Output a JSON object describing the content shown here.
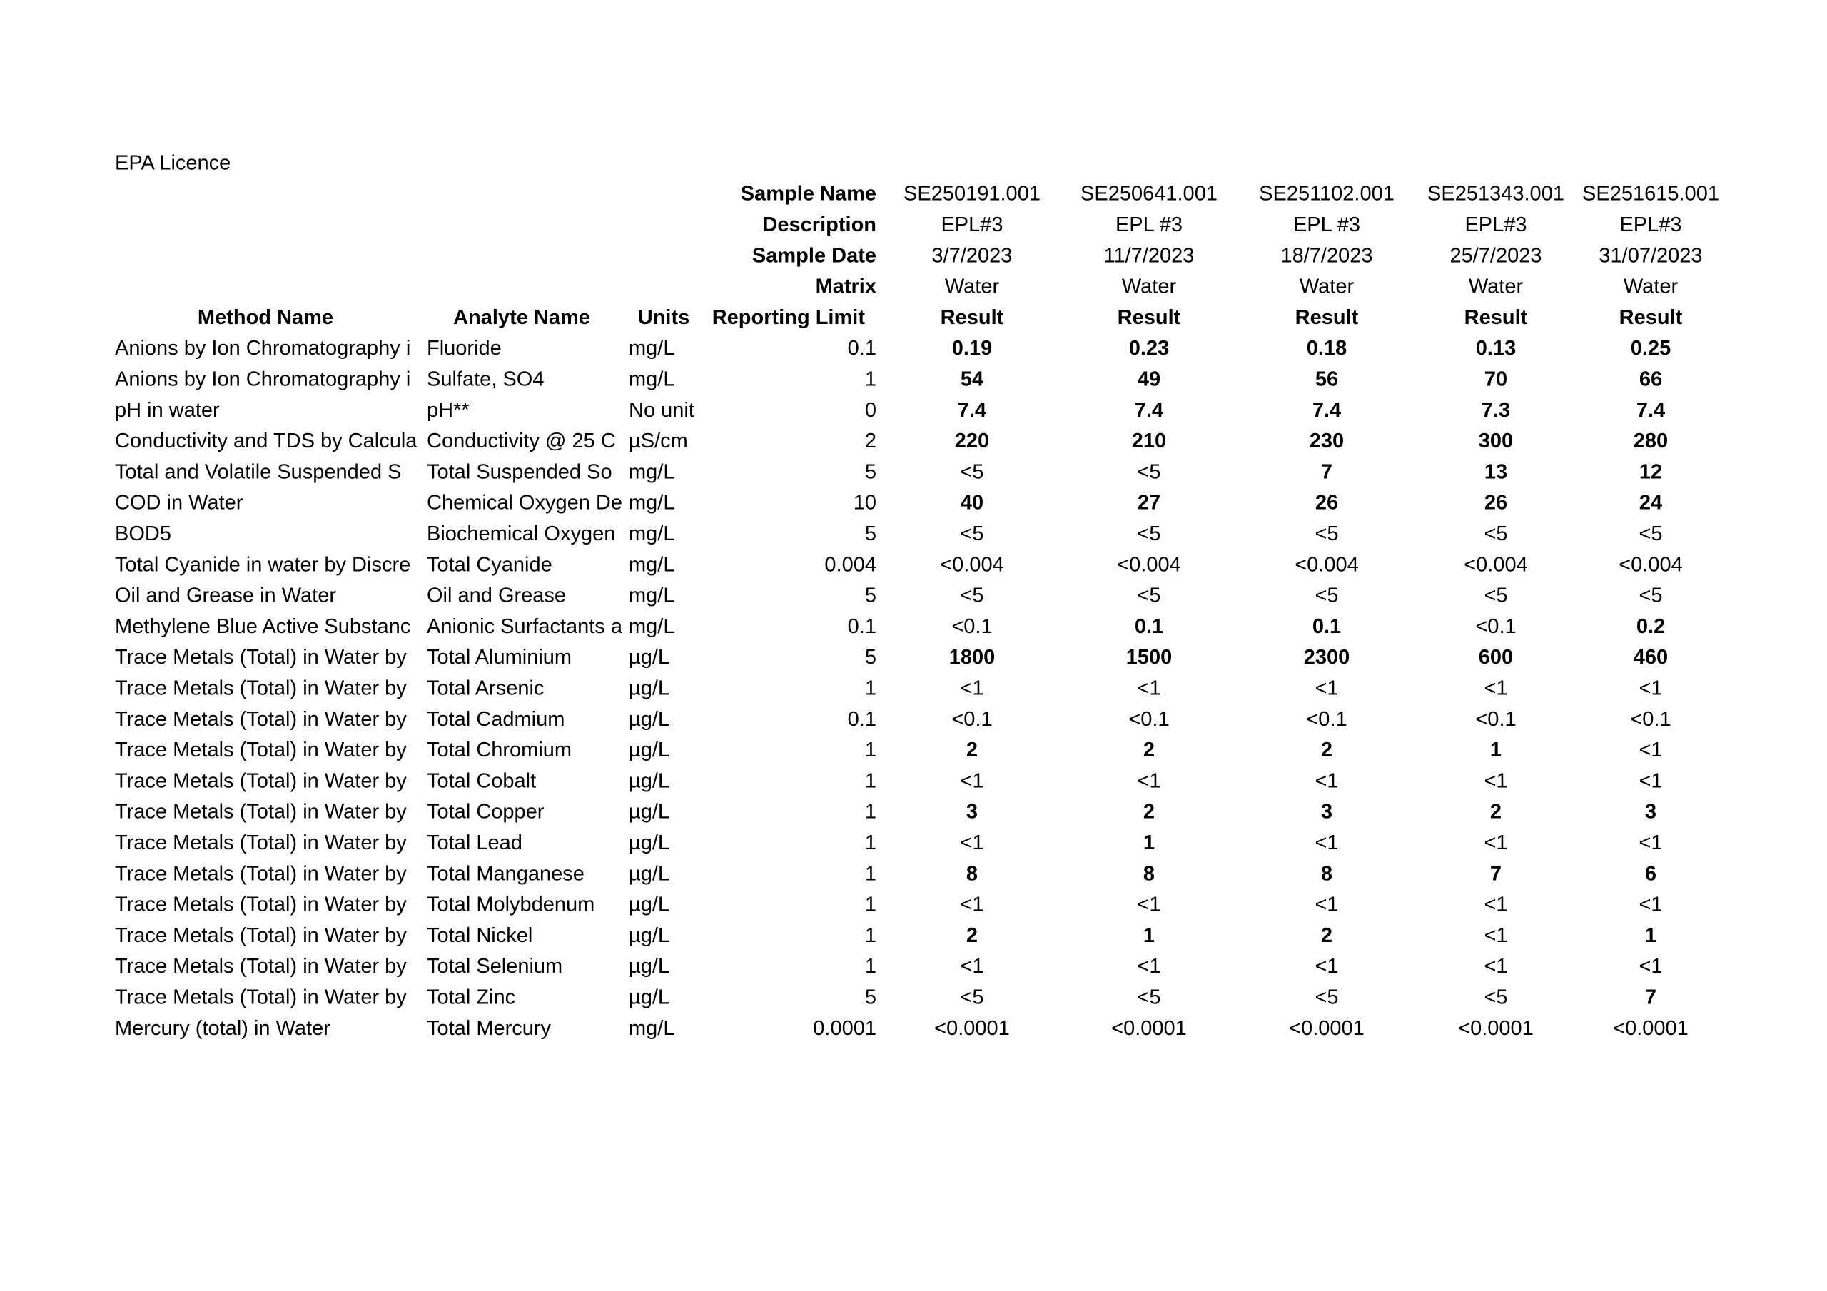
{
  "title": "EPA Licence",
  "sample_header": {
    "labels": [
      "Sample Name",
      "Description",
      "Sample Date",
      "Matrix"
    ],
    "rows": [
      [
        "SE250191.001",
        "SE250641.001",
        "SE251102.001",
        "SE251343.001",
        "SE251615.001"
      ],
      [
        "EPL#3",
        "EPL #3",
        "EPL #3",
        "EPL#3",
        "EPL#3"
      ],
      [
        "3/7/2023",
        "11/7/2023",
        "18/7/2023",
        "25/7/2023",
        "31/07/2023"
      ],
      [
        "Water",
        "Water",
        "Water",
        "Water",
        "Water"
      ]
    ]
  },
  "table": {
    "columns": [
      "Method Name",
      "Analyte Name",
      "Units",
      "Reporting Limit",
      "Result",
      "Result",
      "Result",
      "Result",
      "Result"
    ],
    "rows": [
      [
        "Anions by Ion Chromatography i",
        "Fluoride",
        "mg/L",
        "0.1",
        "0.19",
        "0.23",
        "0.18",
        "0.13",
        "0.25"
      ],
      [
        "Anions by Ion Chromatography i",
        "Sulfate, SO4",
        "mg/L",
        "1",
        "54",
        "49",
        "56",
        "70",
        "66"
      ],
      [
        "pH in water",
        "pH**",
        "No unit",
        "0",
        "7.4",
        "7.4",
        "7.4",
        "7.3",
        "7.4"
      ],
      [
        "Conductivity and TDS by Calcula",
        "Conductivity @ 25 C",
        "µS/cm",
        "2",
        "220",
        "210",
        "230",
        "300",
        "280"
      ],
      [
        "Total and Volatile Suspended S",
        "Total Suspended So",
        "mg/L",
        "5",
        "<5",
        "<5",
        "7",
        "13",
        "12"
      ],
      [
        "COD in Water",
        "Chemical Oxygen De",
        "mg/L",
        "10",
        "40",
        "27",
        "26",
        "26",
        "24"
      ],
      [
        "BOD5",
        "Biochemical Oxygen",
        "mg/L",
        "5",
        "<5",
        "<5",
        "<5",
        "<5",
        "<5"
      ],
      [
        "Total Cyanide in water by Discre",
        "Total Cyanide",
        "mg/L",
        "0.004",
        "<0.004",
        "<0.004",
        "<0.004",
        "<0.004",
        "<0.004"
      ],
      [
        "Oil and Grease in Water",
        "Oil and Grease",
        "mg/L",
        "5",
        "<5",
        "<5",
        "<5",
        "<5",
        "<5"
      ],
      [
        "Methylene Blue Active Substanc",
        "Anionic Surfactants a",
        "mg/L",
        "0.1",
        "<0.1",
        "0.1",
        "0.1",
        "<0.1",
        "0.2"
      ],
      [
        "Trace Metals (Total) in Water by",
        "Total Aluminium",
        "µg/L",
        "5",
        "1800",
        "1500",
        "2300",
        "600",
        "460"
      ],
      [
        "Trace Metals (Total) in Water by",
        "Total Arsenic",
        "µg/L",
        "1",
        "<1",
        "<1",
        "<1",
        "<1",
        "<1"
      ],
      [
        "Trace Metals (Total) in Water by",
        "Total Cadmium",
        "µg/L",
        "0.1",
        "<0.1",
        "<0.1",
        "<0.1",
        "<0.1",
        "<0.1"
      ],
      [
        "Trace Metals (Total) in Water by",
        "Total Chromium",
        "µg/L",
        "1",
        "2",
        "2",
        "2",
        "1",
        "<1"
      ],
      [
        "Trace Metals (Total) in Water by",
        "Total Cobalt",
        "µg/L",
        "1",
        "<1",
        "<1",
        "<1",
        "<1",
        "<1"
      ],
      [
        "Trace Metals (Total) in Water by",
        "Total Copper",
        "µg/L",
        "1",
        "3",
        "2",
        "3",
        "2",
        "3"
      ],
      [
        "Trace Metals (Total) in Water by",
        "Total Lead",
        "µg/L",
        "1",
        "<1",
        "1",
        "<1",
        "<1",
        "<1"
      ],
      [
        "Trace Metals (Total) in Water by",
        "Total Manganese",
        "µg/L",
        "1",
        "8",
        "8",
        "8",
        "7",
        "6"
      ],
      [
        "Trace Metals (Total) in Water by",
        "Total Molybdenum",
        "µg/L",
        "1",
        "<1",
        "<1",
        "<1",
        "<1",
        "<1"
      ],
      [
        "Trace Metals (Total) in Water by",
        "Total Nickel",
        "µg/L",
        "1",
        "2",
        "1",
        "2",
        "<1",
        "1"
      ],
      [
        "Trace Metals (Total) in Water by",
        "Total Selenium",
        "µg/L",
        "1",
        "<1",
        "<1",
        "<1",
        "<1",
        "<1"
      ],
      [
        "Trace Metals (Total) in Water by",
        "Total Zinc",
        "µg/L",
        "5",
        "<5",
        "<5",
        "<5",
        "<5",
        "7"
      ],
      [
        "Mercury (total) in Water",
        "Total Mercury",
        "mg/L",
        "0.0001",
        "<0.0001",
        "<0.0001",
        "<0.0001",
        "<0.0001",
        "<0.0001"
      ]
    ]
  }
}
